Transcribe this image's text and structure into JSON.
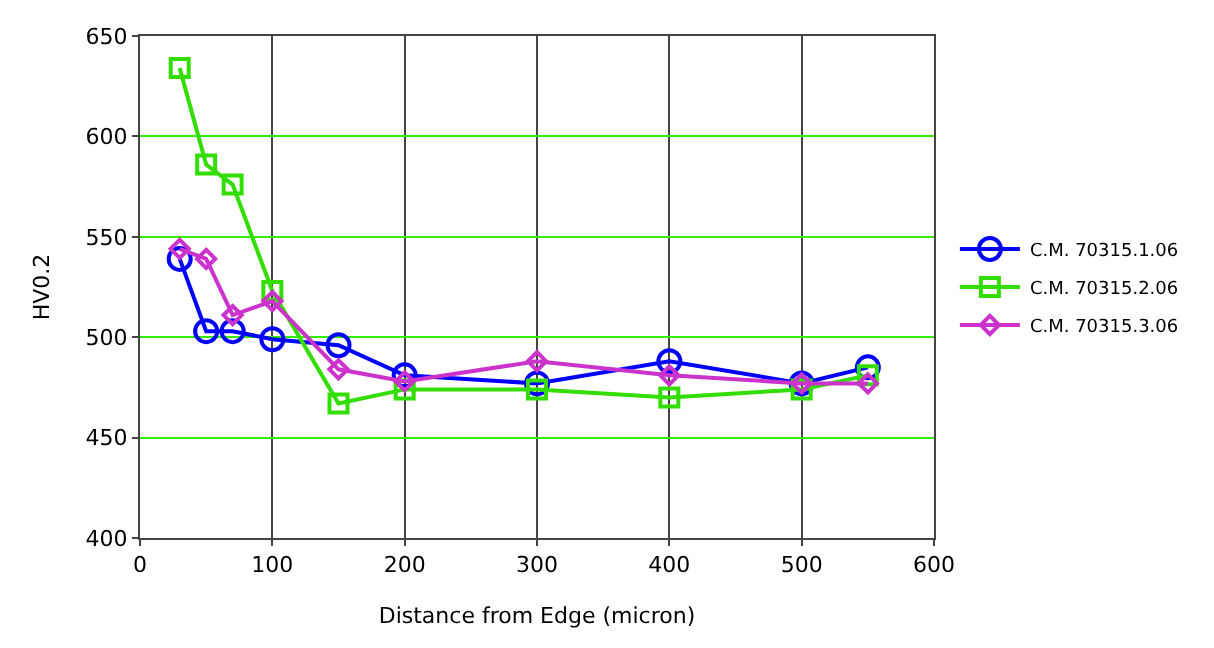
{
  "chart_data": {
    "type": "line",
    "xlabel": "Distance from Edge (micron)",
    "ylabel": "HV0.2",
    "x": [
      30,
      50,
      70,
      100,
      150,
      200,
      300,
      400,
      500,
      550
    ],
    "series": [
      {
        "name": "C.M. 70315.1.06",
        "color": "#0000ff",
        "marker": "circle",
        "values": [
          539,
          503,
          503,
          499,
          496,
          481,
          477,
          488,
          477,
          485
        ]
      },
      {
        "name": "C.M. 70315.2.06",
        "color": "#33dd00",
        "marker": "square",
        "values": [
          634,
          586,
          576,
          523,
          467,
          474,
          474,
          470,
          474,
          481
        ]
      },
      {
        "name": "C.M. 70315.3.06",
        "color": "#cc33cc",
        "marker": "diamond",
        "values": [
          544,
          539,
          511,
          518,
          484,
          478,
          488,
          481,
          477,
          477
        ]
      }
    ],
    "xlim": [
      0,
      600
    ],
    "xticks": [
      0,
      100,
      200,
      300,
      400,
      500,
      600
    ],
    "ylim": [
      400,
      650
    ],
    "yticks": [
      400,
      450,
      500,
      550,
      600,
      650
    ],
    "grid": true,
    "legend": "right"
  }
}
